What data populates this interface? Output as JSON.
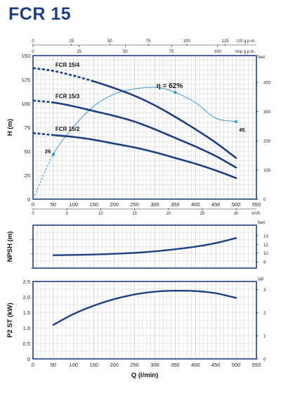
{
  "title": "FCR 15",
  "colors": {
    "main_curve": "#1f3f83",
    "efficiency": "#3a9ad6",
    "grid": "#b8bcc0",
    "frame": "#1f3f83"
  },
  "axes": {
    "q_label": "Q (l/min)",
    "q_ticks": [
      "0",
      "50",
      "100",
      "150",
      "200",
      "250",
      "300",
      "350",
      "400",
      "450",
      "500",
      "550"
    ],
    "m3h_unit": "m³/h",
    "m3h_ticks": [
      "0",
      "5",
      "10",
      "15",
      "20",
      "25",
      "30"
    ],
    "usgpm_unit": "US g.p.m.",
    "usgpm_ticks": [
      "0",
      "25",
      "50",
      "75",
      "100",
      "125"
    ],
    "impgpm_unit": "Imp g.p.m.",
    "impgpm_ticks": [
      "0",
      "25",
      "50",
      "75",
      "100"
    ]
  },
  "chart_data": [
    {
      "type": "line",
      "panel": "head",
      "ylabel": "H (m)",
      "xlim": [
        0,
        550
      ],
      "ylim": [
        0,
        150
      ],
      "yticks": [
        "0",
        "25",
        "50",
        "75",
        "100",
        "125",
        "150"
      ],
      "right_unit": "feet",
      "right_ticks": [
        "0",
        "100",
        "200",
        "300",
        "400"
      ],
      "series": [
        {
          "name": "FCR 15/4",
          "x": [
            0,
            50,
            100,
            150,
            200,
            250,
            300,
            350,
            400,
            450,
            500
          ],
          "y": [
            137,
            134,
            129,
            123,
            116,
            108,
            98,
            86,
            73,
            59,
            43
          ],
          "dashed_until": 150
        },
        {
          "name": "FCR 15/3",
          "x": [
            0,
            50,
            100,
            150,
            200,
            250,
            300,
            350,
            400,
            450,
            500
          ],
          "y": [
            103,
            101,
            97,
            92,
            87,
            81,
            73,
            64,
            55,
            45,
            33
          ],
          "dashed_until": 50
        },
        {
          "name": "FCR 15/2",
          "x": [
            0,
            50,
            100,
            150,
            200,
            250,
            300,
            350,
            400,
            450,
            500
          ],
          "y": [
            69,
            67,
            65,
            62,
            58,
            54,
            49,
            43,
            37,
            30,
            22
          ],
          "dashed_until": 50
        }
      ],
      "efficiency": {
        "label": "η = 62%",
        "x": [
          0,
          50,
          100,
          150,
          200,
          250,
          300,
          350,
          400,
          450,
          500
        ],
        "y": [
          0,
          26,
          42,
          54,
          61,
          64,
          65,
          62,
          56,
          47,
          45
        ],
        "dashed_until": 50,
        "points": [
          {
            "x": 50,
            "label": "26"
          },
          {
            "x": 350,
            "label": ""
          },
          {
            "x": 500,
            "label": "45"
          }
        ]
      }
    },
    {
      "type": "line",
      "panel": "npsh",
      "ylabel": "NPSH (m)",
      "xlim": [
        0,
        550
      ],
      "ylim": [
        2,
        5
      ],
      "right_unit": "feet",
      "right_ticks": [
        "8",
        "10",
        "12",
        "14"
      ],
      "series": [
        {
          "name": "NPSH",
          "x": [
            50,
            100,
            150,
            200,
            250,
            300,
            350,
            400,
            450,
            500
          ],
          "y": [
            2.9,
            2.92,
            2.95,
            3.0,
            3.07,
            3.17,
            3.32,
            3.5,
            3.75,
            4.1
          ]
        }
      ]
    },
    {
      "type": "line",
      "panel": "power",
      "ylabel": "P2 ST (kW)",
      "xlim": [
        0,
        550
      ],
      "ylim": [
        0,
        2.5
      ],
      "yticks": [
        "0",
        "0.5",
        "1.0",
        "1.5",
        "2.0",
        "2.5"
      ],
      "right_unit": "HP",
      "right_ticks": [
        "0",
        "1",
        "2",
        "3"
      ],
      "series": [
        {
          "name": "P2",
          "x": [
            50,
            100,
            150,
            200,
            250,
            300,
            350,
            400,
            450,
            500
          ],
          "y": [
            1.1,
            1.45,
            1.72,
            1.93,
            2.08,
            2.17,
            2.2,
            2.19,
            2.12,
            1.97
          ]
        }
      ]
    }
  ]
}
